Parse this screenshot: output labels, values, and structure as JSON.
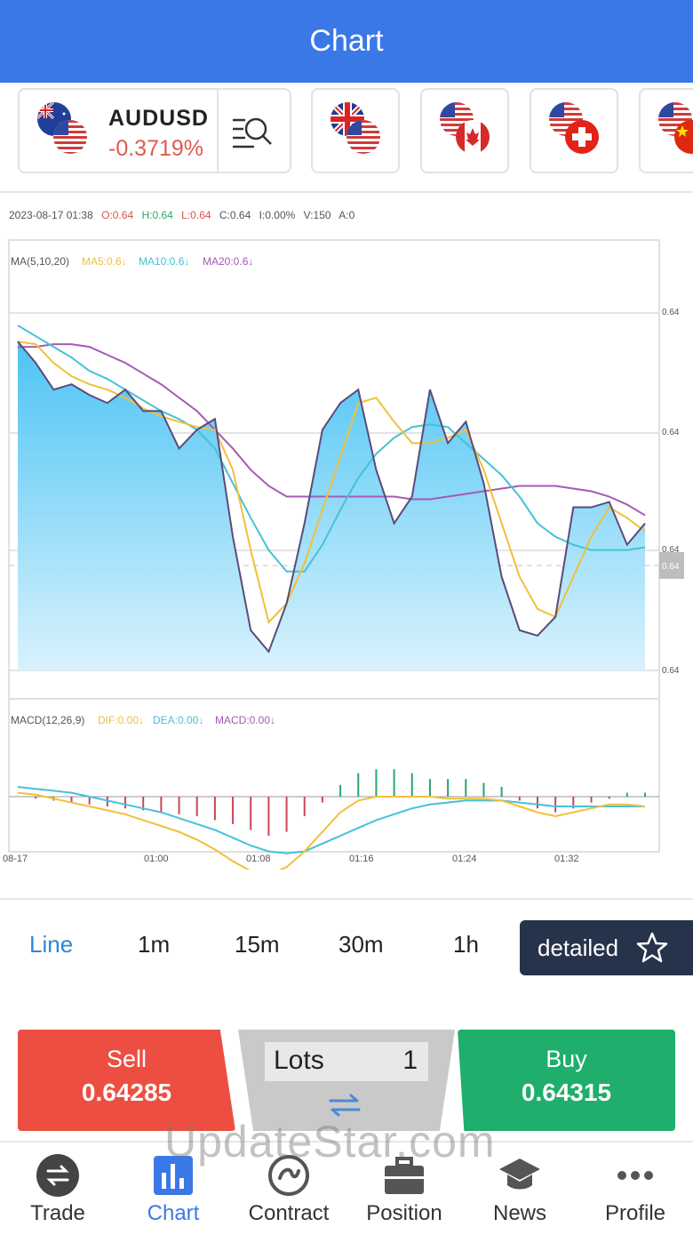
{
  "header": {
    "title": "Chart"
  },
  "pairs": [
    {
      "code": "AUDUSD",
      "change": "-0.3719%",
      "flag_top": "australia-flag-icon",
      "flag_bottom": "us-flag-icon"
    },
    {
      "flag_top": "uk-flag-icon",
      "flag_bottom": "us-flag-icon"
    },
    {
      "flag_top": "us-flag-icon",
      "flag_bottom": "canada-flag-icon"
    },
    {
      "flag_top": "us-flag-icon",
      "flag_bottom": "switzerland-flag-icon"
    },
    {
      "flag_top": "us-flag-icon",
      "flag_bottom": "china-flag-icon"
    }
  ],
  "ohlc": {
    "datetime": "2023-08-17  01:38",
    "open": "O:0.64",
    "high": "H:0.64",
    "low": "L:0.64",
    "close": "C:0.64",
    "change": "I:0.00%",
    "volume": "V:150",
    "amount": "A:0"
  },
  "chart_data": {
    "type": "line",
    "main": {
      "legend": {
        "title": "MA(5,10,20)",
        "ma5": "MA5:0.6↓",
        "ma10": "MA10:0.6↓",
        "ma20": "MA20:0.6↓"
      },
      "price_ticks": [
        "0.64",
        "0.64",
        "0.64",
        "0.64",
        "0.64"
      ],
      "current_price_tag": "0.64"
    },
    "macd": {
      "legend": {
        "title": "MACD(12,26,9)",
        "dif": "DIF:0.00↓",
        "dea": "DEA:0.00↓",
        "macd": "MACD:0.00↓"
      }
    },
    "time_ticks": [
      "08-17",
      "01:00",
      "01:08",
      "01:16",
      "01:24",
      "01:32"
    ],
    "colors": {
      "area": "#5bcaf5",
      "price_line": "#5a4b7a",
      "ma5": "#f0c03a",
      "ma10": "#45c2d6",
      "ma20": "#a55ab5",
      "macd_up": "#2aa66a",
      "macd_down": "#c9455a"
    },
    "price_series": [
      0.78,
      0.7,
      0.6,
      0.62,
      0.58,
      0.55,
      0.6,
      0.52,
      0.52,
      0.38,
      0.45,
      0.49,
      0.05,
      -0.3,
      -0.38,
      -0.2,
      0.1,
      0.45,
      0.55,
      0.6,
      0.3,
      0.1,
      0.2,
      0.6,
      0.4,
      0.48,
      0.25,
      -0.1,
      -0.3,
      -0.32,
      -0.25,
      0.16,
      0.16,
      0.18,
      0.02,
      0.1
    ],
    "ma5_series": [
      0.78,
      0.77,
      0.7,
      0.65,
      0.62,
      0.6,
      0.57,
      0.53,
      0.5,
      0.48,
      0.46,
      0.45,
      0.3,
      0.0,
      -0.27,
      -0.2,
      -0.05,
      0.15,
      0.35,
      0.55,
      0.57,
      0.48,
      0.4,
      0.4,
      0.42,
      0.45,
      0.3,
      0.1,
      -0.1,
      -0.22,
      -0.25,
      -0.1,
      0.05,
      0.16,
      0.12,
      0.07
    ],
    "ma10_series": [
      0.84,
      0.8,
      0.76,
      0.72,
      0.67,
      0.64,
      0.6,
      0.56,
      0.52,
      0.49,
      0.45,
      0.38,
      0.25,
      0.12,
      0.0,
      -0.08,
      -0.08,
      0.02,
      0.15,
      0.27,
      0.36,
      0.42,
      0.46,
      0.47,
      0.46,
      0.4,
      0.34,
      0.28,
      0.2,
      0.1,
      0.05,
      0.02,
      0.0,
      0.0,
      0.0,
      0.01
    ],
    "ma20_series": [
      0.76,
      0.76,
      0.77,
      0.77,
      0.76,
      0.73,
      0.7,
      0.66,
      0.62,
      0.57,
      0.52,
      0.45,
      0.38,
      0.3,
      0.24,
      0.2,
      0.2,
      0.2,
      0.2,
      0.2,
      0.2,
      0.2,
      0.19,
      0.19,
      0.2,
      0.21,
      0.22,
      0.23,
      0.24,
      0.24,
      0.24,
      0.23,
      0.22,
      0.2,
      0.17,
      0.13
    ],
    "macd_hist": [
      0.0,
      -0.01,
      -0.02,
      -0.03,
      -0.04,
      -0.05,
      -0.06,
      -0.07,
      -0.08,
      -0.09,
      -0.1,
      -0.12,
      -0.14,
      -0.17,
      -0.2,
      -0.18,
      -0.1,
      -0.03,
      0.06,
      0.12,
      0.14,
      0.14,
      0.12,
      0.09,
      0.09,
      0.09,
      0.07,
      0.05,
      -0.02,
      -0.06,
      -0.08,
      -0.06,
      -0.03,
      -0.01,
      0.02,
      0.02
    ],
    "dif_series": [
      0.02,
      0.01,
      -0.01,
      -0.03,
      -0.05,
      -0.07,
      -0.09,
      -0.12,
      -0.15,
      -0.18,
      -0.22,
      -0.27,
      -0.33,
      -0.38,
      -0.4,
      -0.36,
      -0.28,
      -0.18,
      -0.08,
      -0.02,
      0.0,
      0.0,
      0.0,
      0.0,
      -0.01,
      -0.01,
      -0.01,
      -0.02,
      -0.05,
      -0.08,
      -0.1,
      -0.08,
      -0.06,
      -0.04,
      -0.04,
      -0.05
    ],
    "dea_series": [
      0.05,
      0.04,
      0.03,
      0.02,
      0.0,
      -0.02,
      -0.04,
      -0.06,
      -0.08,
      -0.11,
      -0.14,
      -0.17,
      -0.21,
      -0.25,
      -0.28,
      -0.29,
      -0.28,
      -0.24,
      -0.2,
      -0.16,
      -0.12,
      -0.09,
      -0.06,
      -0.04,
      -0.03,
      -0.02,
      -0.02,
      -0.02,
      -0.03,
      -0.04,
      -0.05,
      -0.05,
      -0.05,
      -0.05,
      -0.05,
      -0.05
    ]
  },
  "timeframes": [
    {
      "label": "Line",
      "active": true
    },
    {
      "label": "1m"
    },
    {
      "label": "15m"
    },
    {
      "label": "30m"
    },
    {
      "label": "1h"
    }
  ],
  "detailed_label": "detailed",
  "trade": {
    "sell_label": "Sell",
    "sell_price": "0.64285",
    "lots_label": "Lots",
    "lots_value": "1",
    "buy_label": "Buy",
    "buy_price": "0.64315"
  },
  "watermark": "UpdateStar.com",
  "nav": [
    {
      "label": "Trade",
      "icon": "trade-icon"
    },
    {
      "label": "Chart",
      "icon": "bar-chart-icon",
      "active": true
    },
    {
      "label": "Contract",
      "icon": "contract-icon"
    },
    {
      "label": "Position",
      "icon": "briefcase-icon"
    },
    {
      "label": "News",
      "icon": "graduation-cap-icon"
    },
    {
      "label": "Profile",
      "icon": "more-dots-icon"
    }
  ]
}
